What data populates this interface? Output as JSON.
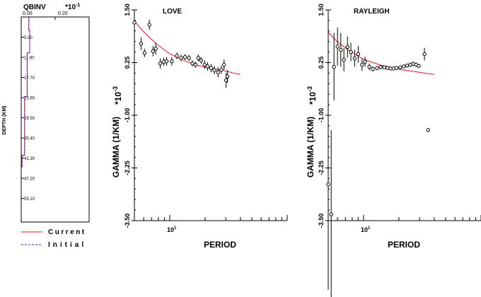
{
  "legend": {
    "current_label": "Current",
    "initial_label": "Initial",
    "current_color": "#e8141e",
    "initial_color": "#2a2ad8"
  },
  "chart_data": [
    {
      "type": "line",
      "title": "QBINV",
      "x_multiplier": "*10",
      "x_multiplier_exp": "-1",
      "xlabel": "",
      "ylabel": "DEPTH (KM)",
      "x_tick_labels": [
        "0.00",
        "0.20"
      ],
      "y_tick_labels": [
        "5.90",
        "11.80",
        "17.70",
        "23.60",
        "29.50",
        "35.40",
        "41.30",
        "47.20",
        "53.10"
      ],
      "xlim": [
        0,
        0.4
      ],
      "ylim": [
        60,
        0
      ],
      "y_reversed": true,
      "series": [
        {
          "name": "Current",
          "style": "solid",
          "points": [
            [
              0.045,
              0
            ],
            [
              0.045,
              4
            ],
            [
              0.05,
              4
            ],
            [
              0.05,
              10.5
            ],
            [
              0.035,
              10.5
            ],
            [
              0.035,
              23.3
            ],
            [
              0.02,
              23.3
            ],
            [
              0.02,
              40.5
            ],
            [
              0.005,
              40.5
            ],
            [
              0.005,
              44
            ]
          ]
        },
        {
          "name": "Initial",
          "style": "dashed",
          "points": [
            [
              0.045,
              0
            ],
            [
              0.045,
              4
            ],
            [
              0.05,
              4
            ],
            [
              0.05,
              10.5
            ],
            [
              0.035,
              10.5
            ],
            [
              0.035,
              23.3
            ],
            [
              0.02,
              23.3
            ],
            [
              0.02,
              40.5
            ],
            [
              0.005,
              40.5
            ],
            [
              0.005,
              44
            ]
          ]
        }
      ]
    },
    {
      "type": "scatter",
      "title": "LOVE",
      "xlabel": "PERIOD",
      "ylabel": "GAMMA (1/KM)",
      "y_multiplier": "*10",
      "y_multiplier_exp": "-3",
      "x_scale": "log",
      "xlim": [
        5,
        100
      ],
      "ylim": [
        -3.5,
        1.5
      ],
      "x_tick_labels": [
        {
          "value": 10,
          "base": "10",
          "exp": "1"
        }
      ],
      "y_tick_labels": [
        "-3.50",
        "-2.25",
        "-1.00",
        "0.25",
        "1.50"
      ],
      "model_curve": [
        [
          5,
          1.23
        ],
        [
          6,
          0.98
        ],
        [
          7,
          0.8
        ],
        [
          8,
          0.66
        ],
        [
          9,
          0.55
        ],
        [
          10,
          0.46
        ],
        [
          12,
          0.35
        ],
        [
          14,
          0.27
        ],
        [
          17,
          0.19
        ],
        [
          20,
          0.14
        ],
        [
          25,
          0.09
        ],
        [
          30,
          0.05
        ],
        [
          35,
          0.0
        ],
        [
          40,
          -0.03
        ]
      ],
      "observations": [
        {
          "x": 5.0,
          "y": 1.2,
          "err": 0.1
        },
        {
          "x": 5.7,
          "y": 0.7,
          "err": 0.15
        },
        {
          "x": 6.1,
          "y": 0.48,
          "err": 0.1
        },
        {
          "x": 6.7,
          "y": 1.15,
          "err": 0.12
        },
        {
          "x": 7.2,
          "y": 0.52,
          "err": 0.12
        },
        {
          "x": 7.6,
          "y": 0.58,
          "err": 0.14
        },
        {
          "x": 8.3,
          "y": 0.23,
          "err": 0.12
        },
        {
          "x": 8.9,
          "y": 0.27,
          "err": 0.1
        },
        {
          "x": 9.4,
          "y": 0.28,
          "err": 0.1
        },
        {
          "x": 10.4,
          "y": 0.28,
          "err": 0.1
        },
        {
          "x": 11.5,
          "y": 0.41,
          "err": 0.08
        },
        {
          "x": 12.5,
          "y": 0.36,
          "err": 0.08
        },
        {
          "x": 13.5,
          "y": 0.38,
          "err": 0.07
        },
        {
          "x": 14.6,
          "y": 0.36,
          "err": 0.07
        },
        {
          "x": 15.6,
          "y": 0.23,
          "err": 0.07
        },
        {
          "x": 16.6,
          "y": 0.2,
          "err": 0.07
        },
        {
          "x": 17.5,
          "y": 0.36,
          "err": 0.08
        },
        {
          "x": 18.5,
          "y": 0.3,
          "err": 0.08
        },
        {
          "x": 19.8,
          "y": 0.2,
          "err": 0.1
        },
        {
          "x": 21.0,
          "y": 0.16,
          "err": 0.1
        },
        {
          "x": 22.5,
          "y": 0.12,
          "err": 0.1
        },
        {
          "x": 24.0,
          "y": 0.07,
          "err": 0.1
        },
        {
          "x": 25.8,
          "y": 0.02,
          "err": 0.12
        },
        {
          "x": 27.5,
          "y": 0.08,
          "err": 0.1
        },
        {
          "x": 29.0,
          "y": 0.2,
          "err": 0.12
        },
        {
          "x": 30.2,
          "y": -0.17,
          "err": 0.18
        },
        {
          "x": 31.0,
          "y": -0.08,
          "err": 0.15
        }
      ]
    },
    {
      "type": "scatter",
      "title": "RAYLEIGH",
      "xlabel": "PERIOD",
      "ylabel": "GAMMA (1/KM)",
      "y_multiplier": "*10",
      "y_multiplier_exp": "-3",
      "x_scale": "log",
      "xlim": [
        5,
        100
      ],
      "ylim": [
        -3.5,
        1.5
      ],
      "x_tick_labels": [
        {
          "value": 10,
          "base": "10",
          "exp": "1"
        }
      ],
      "y_tick_labels": [
        "-3.50",
        "-2.25",
        "-1.00",
        "0.25",
        "1.50"
      ],
      "model_curve": [
        [
          5,
          0.97
        ],
        [
          6,
          0.74
        ],
        [
          7,
          0.6
        ],
        [
          8,
          0.49
        ],
        [
          9,
          0.4
        ],
        [
          10,
          0.33
        ],
        [
          12,
          0.25
        ],
        [
          14,
          0.19
        ],
        [
          17,
          0.14
        ],
        [
          20,
          0.09
        ],
        [
          25,
          0.05
        ],
        [
          30,
          0.02
        ],
        [
          35,
          -0.01
        ],
        [
          40,
          -0.03
        ]
      ],
      "observations": [
        {
          "x": 5.0,
          "y": -2.64,
          "err": 2.5
        },
        {
          "x": 5.3,
          "y": -3.35,
          "err": 2.0
        },
        {
          "x": 5.6,
          "y": 0.15,
          "err": 0.8
        },
        {
          "x": 6.0,
          "y": 0.63,
          "err": 0.45
        },
        {
          "x": 6.4,
          "y": 0.55,
          "err": 0.4
        },
        {
          "x": 6.8,
          "y": 0.32,
          "err": 0.28
        },
        {
          "x": 7.3,
          "y": 0.62,
          "err": 0.25
        },
        {
          "x": 7.8,
          "y": 0.5,
          "err": 0.22
        },
        {
          "x": 8.4,
          "y": 0.35,
          "err": 0.2
        },
        {
          "x": 9.0,
          "y": 0.45,
          "err": 0.2
        },
        {
          "x": 9.7,
          "y": 0.2,
          "err": 0.15
        },
        {
          "x": 10.3,
          "y": 0.27,
          "err": 0.12
        },
        {
          "x": 11.2,
          "y": 0.15,
          "err": 0.08
        },
        {
          "x": 12.0,
          "y": 0.1,
          "err": 0.06
        },
        {
          "x": 13.0,
          "y": 0.12,
          "err": 0.05
        },
        {
          "x": 14.0,
          "y": 0.14,
          "err": 0.05
        },
        {
          "x": 15.0,
          "y": 0.14,
          "err": 0.04
        },
        {
          "x": 16.0,
          "y": 0.12,
          "err": 0.04
        },
        {
          "x": 17.0,
          "y": 0.11,
          "err": 0.04
        },
        {
          "x": 18.0,
          "y": 0.11,
          "err": 0.04
        },
        {
          "x": 19.0,
          "y": 0.12,
          "err": 0.04
        },
        {
          "x": 20.5,
          "y": 0.14,
          "err": 0.04
        },
        {
          "x": 22.0,
          "y": 0.16,
          "err": 0.04
        },
        {
          "x": 23.5,
          "y": 0.18,
          "err": 0.04
        },
        {
          "x": 25.0,
          "y": 0.2,
          "err": 0.05
        },
        {
          "x": 26.5,
          "y": 0.22,
          "err": 0.05
        },
        {
          "x": 28.0,
          "y": 0.2,
          "err": 0.05
        },
        {
          "x": 29.5,
          "y": 0.17,
          "err": 0.05
        },
        {
          "x": 33.0,
          "y": 0.45,
          "err": 0.15
        },
        {
          "x": 35.5,
          "y": -1.35,
          "err": 0.05
        }
      ]
    }
  ]
}
